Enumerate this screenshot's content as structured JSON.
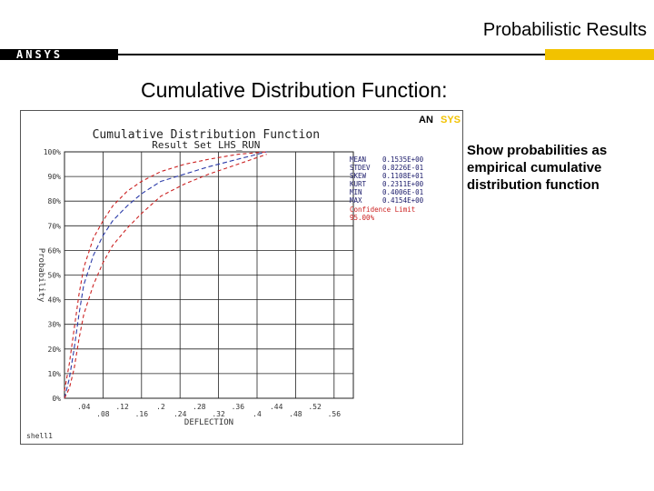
{
  "slide": {
    "title": "Probabilistic Results",
    "logo_text": "ANSYS",
    "section_title": "Cumulative Distribution Function:",
    "note": "Show probabilities as empirical cumulative distribution function"
  },
  "colors": {
    "accent_yellow": "#f2c200",
    "mean_curve": "#2a3aa8",
    "confidence": "#cc2222",
    "grid": "#222222"
  },
  "chart_data": {
    "type": "line",
    "title": "Cumulative Distribution Function",
    "subtitle": "Result Set LHS_RUN",
    "xlabel": "DEFLECTION",
    "ylabel": "Probability",
    "xlim": [
      0,
      0.6
    ],
    "ylim": [
      0,
      100
    ],
    "x_ticks": [
      ".04",
      ".08",
      ".12",
      ".16",
      ".2",
      ".24",
      ".28",
      ".32",
      ".36",
      ".4",
      ".44",
      ".48",
      ".52",
      ".56"
    ],
    "y_ticks": [
      "0%",
      "10%",
      "20%",
      "30%",
      "40%",
      "50%",
      "60%",
      "70%",
      "80%",
      "90%",
      "100%"
    ],
    "grid": true,
    "stats": [
      {
        "label": "MEAN",
        "value": "0.1535E+00"
      },
      {
        "label": "STDEV",
        "value": "0.8226E-01"
      },
      {
        "label": "SKEW",
        "value": "0.1108E+01"
      },
      {
        "label": "KURT",
        "value": "0.2311E+00"
      },
      {
        "label": "MIN",
        "value": "0.4006E-01"
      },
      {
        "label": "MAX",
        "value": "0.4154E+00"
      }
    ],
    "confidence_label": "Confidence Limit",
    "confidence_level": "95.00%",
    "series": [
      {
        "role": "mean",
        "x": [
          0.0,
          0.01,
          0.02,
          0.03,
          0.04,
          0.06,
          0.08,
          0.1,
          0.13,
          0.16,
          0.2,
          0.25,
          0.3,
          0.36,
          0.42
        ],
        "y": [
          0,
          8,
          20,
          34,
          46,
          58,
          66,
          72,
          78,
          83,
          88,
          91,
          94,
          97,
          100
        ]
      },
      {
        "role": "upper",
        "x": [
          0.0,
          0.01,
          0.02,
          0.03,
          0.04,
          0.06,
          0.08,
          0.1,
          0.13,
          0.16,
          0.2,
          0.25,
          0.3,
          0.36,
          0.42
        ],
        "y": [
          3,
          14,
          28,
          42,
          53,
          65,
          72,
          78,
          84,
          88,
          92,
          95,
          97,
          99,
          100
        ]
      },
      {
        "role": "lower",
        "x": [
          0.0,
          0.01,
          0.02,
          0.03,
          0.04,
          0.06,
          0.08,
          0.1,
          0.13,
          0.16,
          0.2,
          0.25,
          0.3,
          0.36,
          0.42
        ],
        "y": [
          0,
          4,
          12,
          24,
          34,
          46,
          55,
          62,
          69,
          75,
          82,
          87,
          91,
          95,
          99
        ]
      }
    ],
    "corner_label": "shell1",
    "brand": "ANSYS"
  }
}
